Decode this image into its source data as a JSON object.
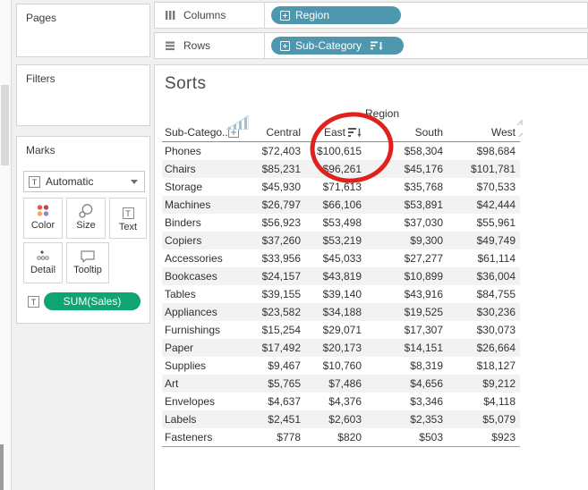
{
  "left_panel": {
    "pages_label": "Pages",
    "filters_label": "Filters",
    "marks_label": "Marks",
    "mark_type_selector": "Automatic",
    "mark_buttons": [
      "Color",
      "Size",
      "Text",
      "Detail",
      "Tooltip"
    ],
    "encoding_pill": "SUM(Sales)"
  },
  "shelves": {
    "columns_label": "Columns",
    "columns_pill": "Region",
    "rows_label": "Rows",
    "rows_pill": "Sub-Category"
  },
  "sheet": {
    "title": "Sorts",
    "column_field_label": "Region",
    "row_header_label": "Sub-Catego.."
  },
  "icons": {
    "text_glyph": "T"
  },
  "colors": {
    "pill_teal": "#4e97ae",
    "pill_green": "#10a474",
    "annotation_red": "#df221d"
  },
  "chart_data": {
    "type": "table",
    "title": "Sorts",
    "column_dimension": "Region",
    "row_dimension": "Sub-Category",
    "measure": "SUM(Sales)",
    "sorted_column": "East",
    "sort_order": "descending",
    "columns": [
      "Central",
      "East",
      "South",
      "West"
    ],
    "rows": [
      {
        "label": "Phones",
        "values": [
          "$72,403",
          "$100,615",
          "$58,304",
          "$98,684"
        ]
      },
      {
        "label": "Chairs",
        "values": [
          "$85,231",
          "$96,261",
          "$45,176",
          "$101,781"
        ]
      },
      {
        "label": "Storage",
        "values": [
          "$45,930",
          "$71,613",
          "$35,768",
          "$70,533"
        ]
      },
      {
        "label": "Machines",
        "values": [
          "$26,797",
          "$66,106",
          "$53,891",
          "$42,444"
        ]
      },
      {
        "label": "Binders",
        "values": [
          "$56,923",
          "$53,498",
          "$37,030",
          "$55,961"
        ]
      },
      {
        "label": "Copiers",
        "values": [
          "$37,260",
          "$53,219",
          "$9,300",
          "$49,749"
        ]
      },
      {
        "label": "Accessories",
        "values": [
          "$33,956",
          "$45,033",
          "$27,277",
          "$61,114"
        ]
      },
      {
        "label": "Bookcases",
        "values": [
          "$24,157",
          "$43,819",
          "$10,899",
          "$36,004"
        ]
      },
      {
        "label": "Tables",
        "values": [
          "$39,155",
          "$39,140",
          "$43,916",
          "$84,755"
        ]
      },
      {
        "label": "Appliances",
        "values": [
          "$23,582",
          "$34,188",
          "$19,525",
          "$30,236"
        ]
      },
      {
        "label": "Furnishings",
        "values": [
          "$15,254",
          "$29,071",
          "$17,307",
          "$30,073"
        ]
      },
      {
        "label": "Paper",
        "values": [
          "$17,492",
          "$20,173",
          "$14,151",
          "$26,664"
        ]
      },
      {
        "label": "Supplies",
        "values": [
          "$9,467",
          "$10,760",
          "$8,319",
          "$18,127"
        ]
      },
      {
        "label": "Art",
        "values": [
          "$5,765",
          "$7,486",
          "$4,656",
          "$9,212"
        ]
      },
      {
        "label": "Envelopes",
        "values": [
          "$4,637",
          "$4,376",
          "$3,346",
          "$4,118"
        ]
      },
      {
        "label": "Labels",
        "values": [
          "$2,451",
          "$2,603",
          "$2,353",
          "$5,079"
        ]
      },
      {
        "label": "Fasteners",
        "values": [
          "$778",
          "$820",
          "$503",
          "$923"
        ]
      }
    ]
  }
}
